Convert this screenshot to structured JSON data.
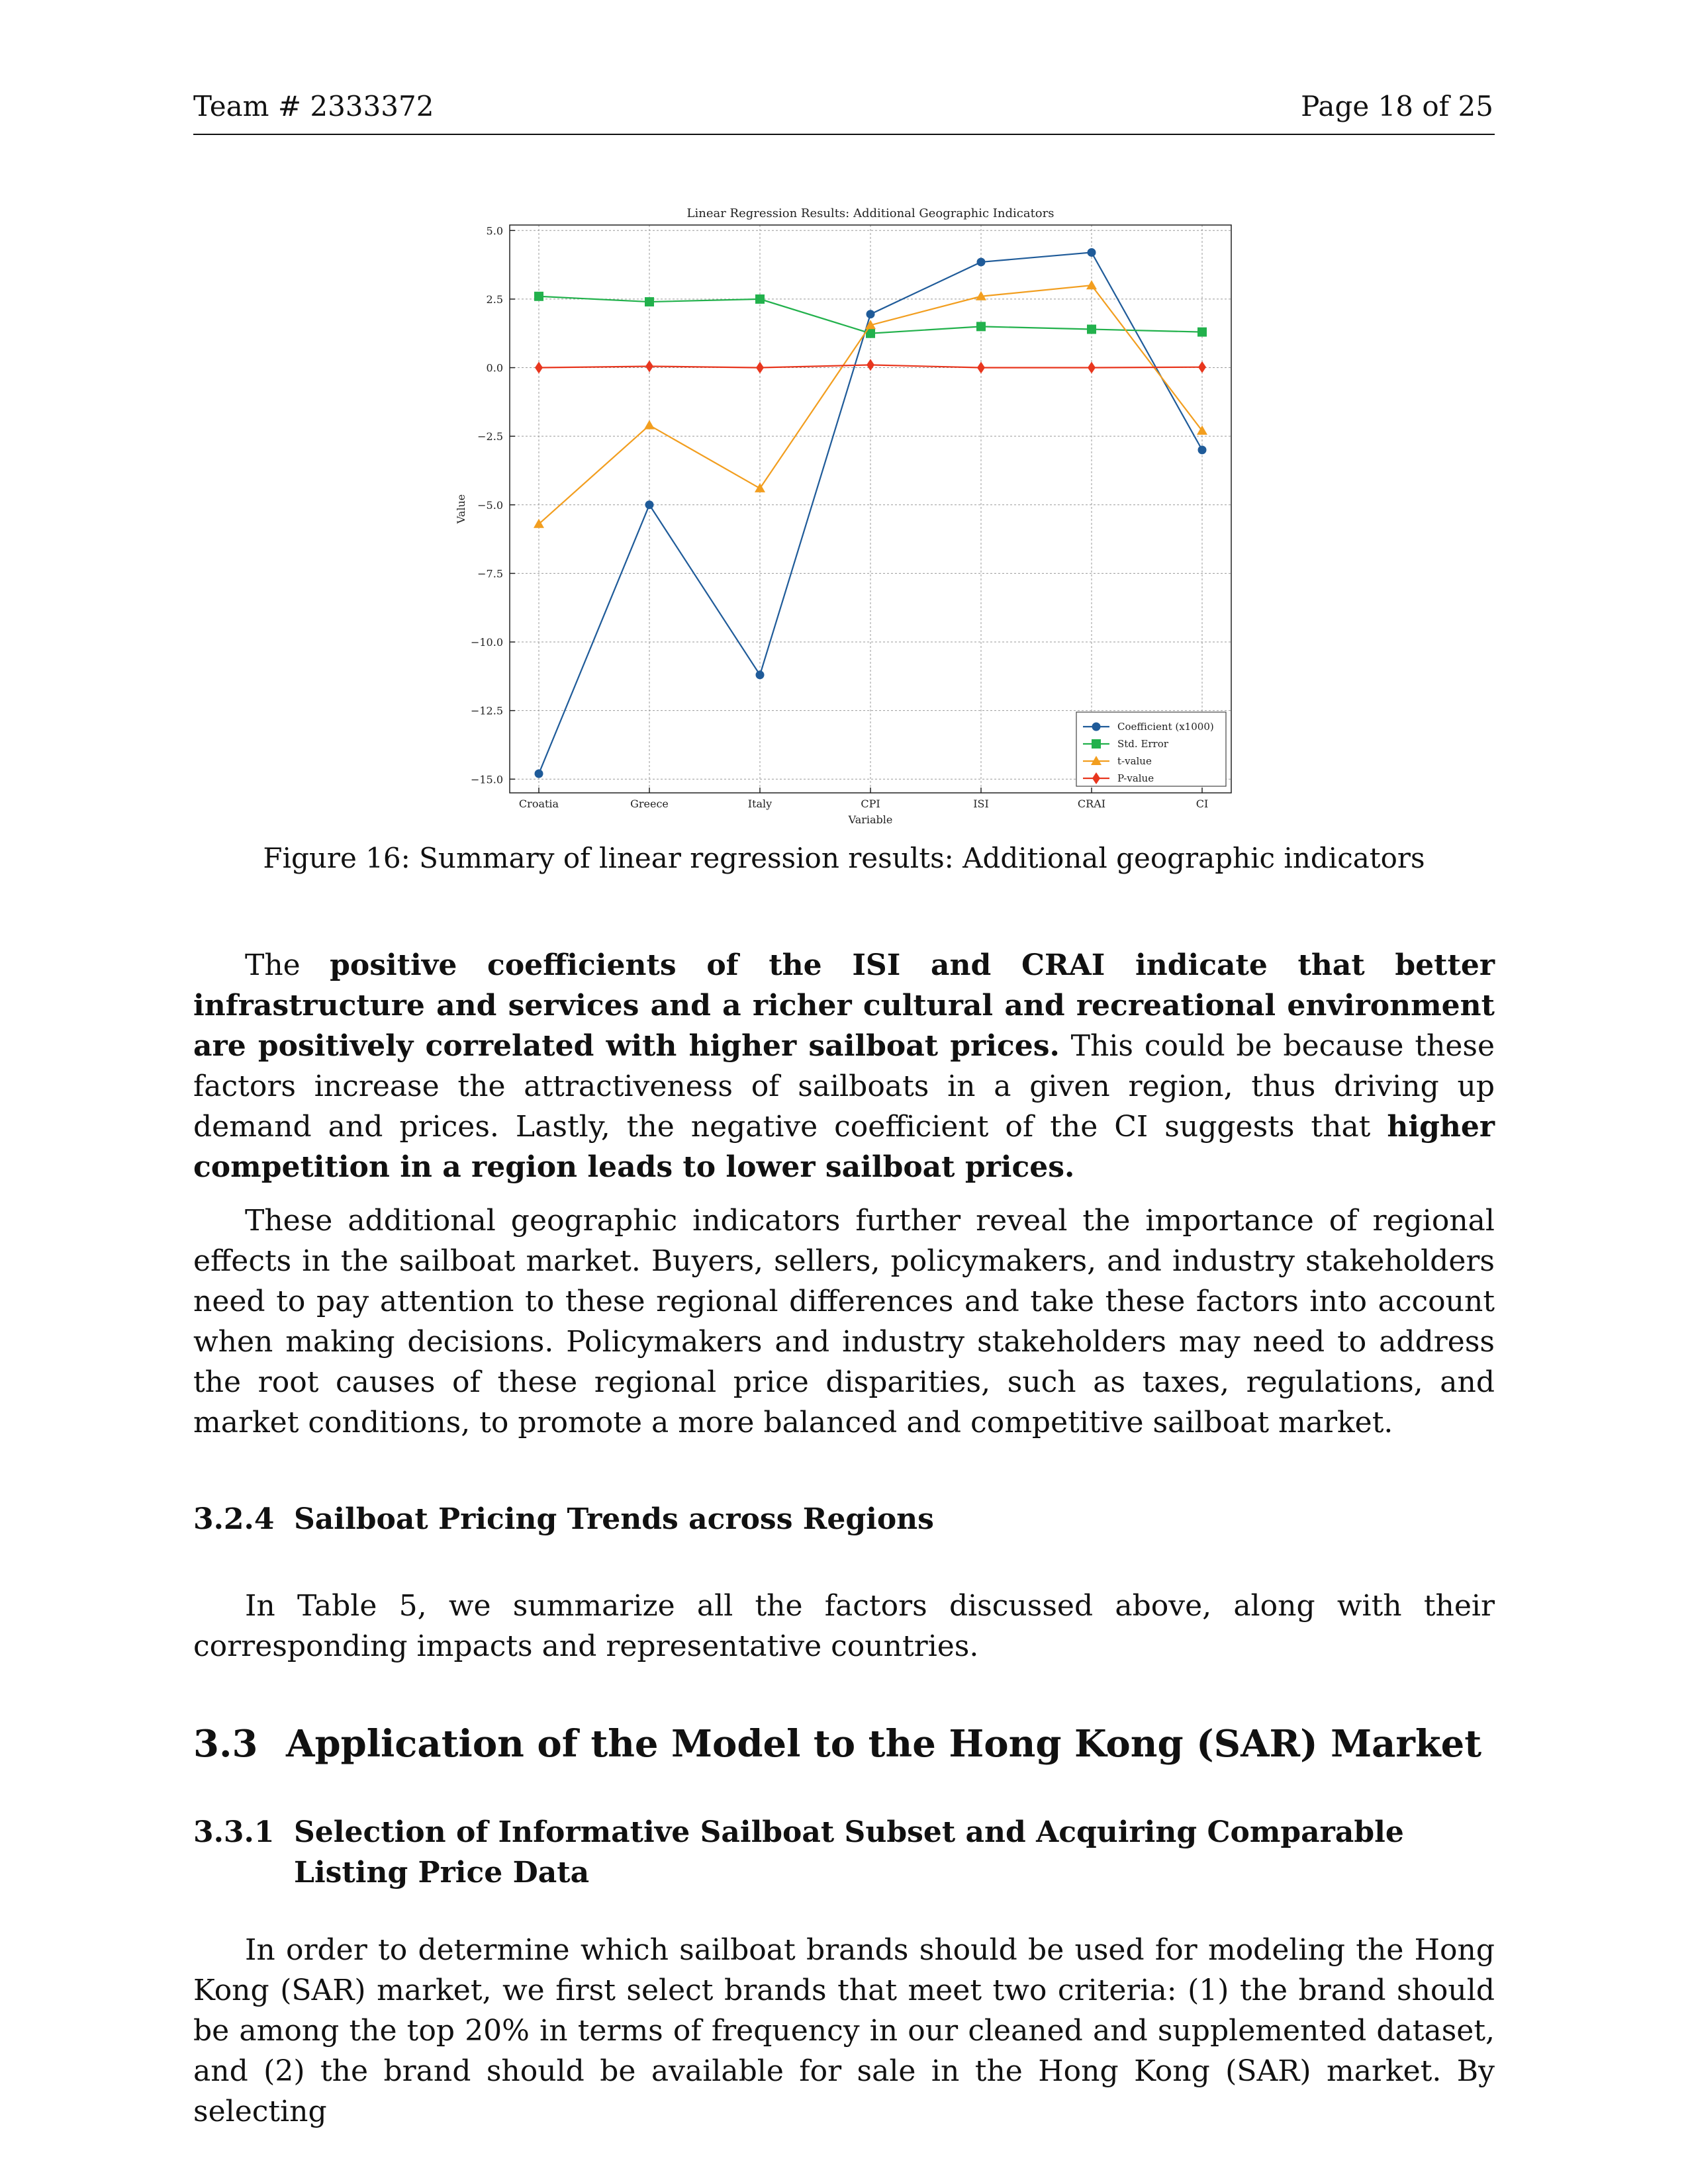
{
  "header": {
    "team": "Team # 2333372",
    "page": "Page 18 of 25"
  },
  "figure": {
    "caption": "Figure 16: Summary of linear regression results: Additional geographic indicators"
  },
  "chart_data": {
    "type": "line",
    "title": "Linear Regression Results: Additional Geographic Indicators",
    "xlabel": "Variable",
    "ylabel": "Value",
    "categories": [
      "Croatia",
      "Greece",
      "Italy",
      "CPI",
      "ISI",
      "CRAI",
      "CI"
    ],
    "ylim": [
      -15.5,
      5.2
    ],
    "yticks": [
      5.0,
      2.5,
      0.0,
      -2.5,
      -5.0,
      -7.5,
      -10.0,
      -12.5,
      -15.0
    ],
    "ytick_labels": [
      "5.0",
      "2.5",
      "0.0",
      "−2.5",
      "−5.0",
      "−7.5",
      "−10.0",
      "−12.5",
      "−15.0"
    ],
    "grid": true,
    "legend_position": "lower-right",
    "series": [
      {
        "name": "Coefficient (x1000)",
        "color": "#1f5b99",
        "marker": "circle",
        "values": [
          -14.8,
          -5.0,
          -11.2,
          1.95,
          3.85,
          4.2,
          -3.0
        ]
      },
      {
        "name": "Std. Error",
        "color": "#22b14c",
        "marker": "square",
        "values": [
          2.6,
          2.4,
          2.5,
          1.25,
          1.5,
          1.4,
          1.3
        ]
      },
      {
        "name": "t-value",
        "color": "#f29e1f",
        "marker": "triangle",
        "values": [
          -5.7,
          -2.1,
          -4.4,
          1.55,
          2.6,
          3.0,
          -2.3
        ]
      },
      {
        "name": "P-value",
        "color": "#e8361e",
        "marker": "diamond",
        "values": [
          0.0,
          0.05,
          0.0,
          0.1,
          0.0,
          0.0,
          0.02
        ]
      }
    ]
  },
  "p1": {
    "a": "The ",
    "b1": "positive coefficients of the ISI and CRAI indicate that better infrastructure and services and a richer cultural and recreational environment are positively correlated with higher sailboat prices.",
    "c": " This could be because these factors increase the attractiveness of sailboats in a given region, thus driving up demand and prices. Lastly, the negative coefficient of the CI suggests that ",
    "b2": "higher competition in a region leads to lower sailboat prices."
  },
  "p2": "These additional geographic indicators further reveal the importance of regional effects in the sailboat market. Buyers, sellers, policymakers, and industry stakeholders need to pay attention to these regional differences and take these factors into account when making decisions. Policymakers and industry stakeholders may need to address the root causes of these regional price disparities, such as taxes, regulations, and market conditions, to promote a more balanced and competitive sailboat market.",
  "h324": {
    "num": "3.2.4",
    "title": "Sailboat Pricing Trends across Regions"
  },
  "p3": "In Table 5, we summarize all the factors discussed above, along with their corresponding impacts and representative countries.",
  "h33": {
    "num": "3.3",
    "title": "Application of the Model to the Hong Kong (SAR) Market"
  },
  "h331": {
    "num": "3.3.1",
    "title": "Selection of Informative Sailboat Subset and Acquiring Comparable Listing Price Data"
  },
  "p4": "In order to determine which sailboat brands should be used for modeling the Hong Kong (SAR) market, we first select brands that meet two criteria: (1) the brand should be among the top 20% in terms of frequency in our cleaned and supplemented dataset, and (2) the brand should be available for sale in the Hong Kong (SAR) market. By selecting"
}
